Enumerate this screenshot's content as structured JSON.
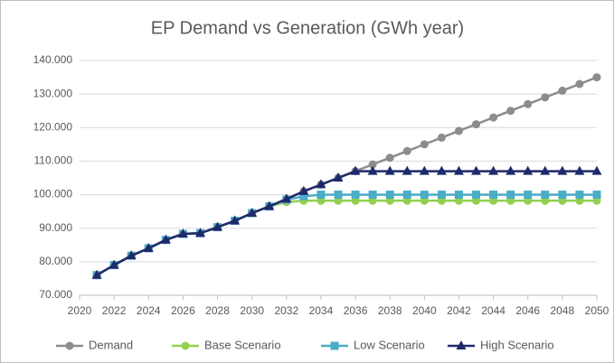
{
  "chart_data": {
    "type": "line",
    "title": "EP Demand vs Generation (GWh year)",
    "x": [
      2021,
      2022,
      2023,
      2024,
      2025,
      2026,
      2027,
      2028,
      2029,
      2030,
      2031,
      2032,
      2033,
      2034,
      2035,
      2036,
      2037,
      2038,
      2039,
      2040,
      2041,
      2042,
      2043,
      2044,
      2045,
      2046,
      2047,
      2048,
      2049,
      2050
    ],
    "xlim": [
      2020,
      2050
    ],
    "xticks": [
      2020,
      2022,
      2024,
      2026,
      2028,
      2030,
      2032,
      2034,
      2036,
      2038,
      2040,
      2042,
      2044,
      2046,
      2048,
      2050
    ],
    "ylim": [
      70000,
      140000
    ],
    "yticks": [
      {
        "value": 70000,
        "label": "70.000"
      },
      {
        "value": 80000,
        "label": "80.000"
      },
      {
        "value": 90000,
        "label": "90.000"
      },
      {
        "value": 100000,
        "label": "100.000"
      },
      {
        "value": 110000,
        "label": "110.000"
      },
      {
        "value": 120000,
        "label": "120.000"
      },
      {
        "value": 130000,
        "label": "130.000"
      },
      {
        "value": 140000,
        "label": "140.000"
      }
    ],
    "grid": true,
    "legend": "bottom",
    "series": [
      {
        "name": "Demand",
        "color": "#8c8c8c",
        "marker": "circle",
        "values": [
          76000,
          79000,
          81800,
          84000,
          86500,
          88300,
          88500,
          90300,
          92200,
          94500,
          96500,
          98700,
          101000,
          103000,
          105000,
          107000,
          109000,
          111000,
          113000,
          115000,
          117000,
          119000,
          121000,
          123000,
          125000,
          127000,
          129000,
          131000,
          133000,
          135000
        ]
      },
      {
        "name": "Base Scenario",
        "color": "#92d050",
        "marker": "circle",
        "values": [
          76000,
          79000,
          81800,
          84000,
          86500,
          88300,
          88500,
          90300,
          92200,
          94500,
          96500,
          97800,
          98200,
          98200,
          98200,
          98200,
          98200,
          98200,
          98200,
          98200,
          98200,
          98200,
          98200,
          98200,
          98200,
          98200,
          98200,
          98200,
          98200,
          98200
        ]
      },
      {
        "name": "Low Scenario",
        "color": "#4bacc6",
        "marker": "square",
        "values": [
          76000,
          79000,
          81800,
          84000,
          86500,
          88300,
          88500,
          90300,
          92200,
          94500,
          96500,
          98500,
          99500,
          100000,
          100000,
          100000,
          100000,
          100000,
          100000,
          100000,
          100000,
          100000,
          100000,
          100000,
          100000,
          100000,
          100000,
          100000,
          100000,
          100000
        ]
      },
      {
        "name": "High Scenario",
        "color": "#1f2a6b",
        "marker": "triangle",
        "values": [
          76000,
          79000,
          81800,
          84000,
          86500,
          88300,
          88500,
          90300,
          92200,
          94500,
          96500,
          98700,
          101000,
          103000,
          105000,
          107000,
          107000,
          107000,
          107000,
          107000,
          107000,
          107000,
          107000,
          107000,
          107000,
          107000,
          107000,
          107000,
          107000,
          107000
        ]
      }
    ]
  }
}
